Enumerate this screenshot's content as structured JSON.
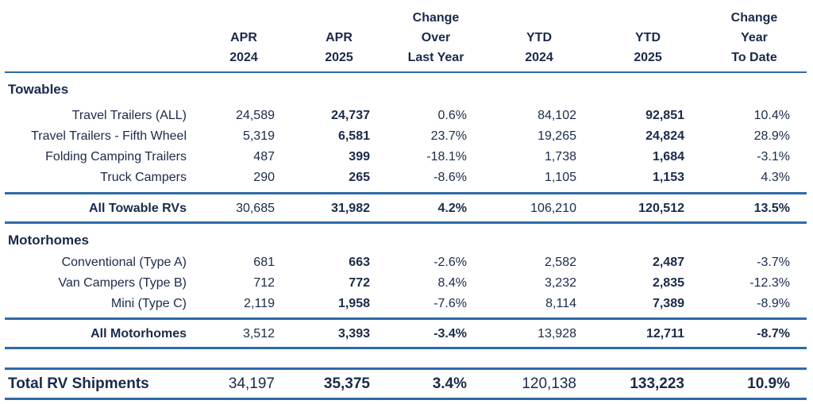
{
  "header": {
    "apr2024": [
      "APR",
      "2024"
    ],
    "apr2025": [
      "APR",
      "2025"
    ],
    "change_over": [
      "Change",
      "Over",
      "Last Year"
    ],
    "ytd2024": [
      "YTD",
      "2024"
    ],
    "ytd2025": [
      "YTD",
      "2025"
    ],
    "change_ytd": [
      "Change",
      "Year",
      "To Date"
    ]
  },
  "towables": {
    "title": "Towables",
    "rows": [
      {
        "label": "Travel Trailers (ALL)",
        "apr2024": "24,589",
        "apr2025": "24,737",
        "chg": "0.6%",
        "ytd2024": "84,102",
        "ytd2025": "92,851",
        "ytdchg": "10.4%"
      },
      {
        "label": "Travel Trailers - Fifth Wheel",
        "apr2024": "5,319",
        "apr2025": "6,581",
        "chg": "23.7%",
        "ytd2024": "19,265",
        "ytd2025": "24,824",
        "ytdchg": "28.9%"
      },
      {
        "label": "Folding Camping Trailers",
        "apr2024": "487",
        "apr2025": "399",
        "chg": "-18.1%",
        "ytd2024": "1,738",
        "ytd2025": "1,684",
        "ytdchg": "-3.1%"
      },
      {
        "label": "Truck Campers",
        "apr2024": "290",
        "apr2025": "265",
        "chg": "-8.6%",
        "ytd2024": "1,105",
        "ytd2025": "1,153",
        "ytdchg": "4.3%"
      }
    ],
    "total": {
      "label": "All Towable RVs",
      "apr2024": "30,685",
      "apr2025": "31,982",
      "chg": "4.2%",
      "ytd2024": "106,210",
      "ytd2025": "120,512",
      "ytdchg": "13.5%"
    }
  },
  "motorhomes": {
    "title": "Motorhomes",
    "rows": [
      {
        "label": "Conventional (Type A)",
        "apr2024": "681",
        "apr2025": "663",
        "chg": "-2.6%",
        "ytd2024": "2,582",
        "ytd2025": "2,487",
        "ytdchg": "-3.7%"
      },
      {
        "label": "Van Campers (Type B)",
        "apr2024": "712",
        "apr2025": "772",
        "chg": "8.4%",
        "ytd2024": "3,232",
        "ytd2025": "2,835",
        "ytdchg": "-12.3%"
      },
      {
        "label": "Mini (Type C)",
        "apr2024": "2,119",
        "apr2025": "1,958",
        "chg": "-7.6%",
        "ytd2024": "8,114",
        "ytd2025": "7,389",
        "ytdchg": "-8.9%"
      }
    ],
    "total": {
      "label": "All Motorhomes",
      "apr2024": "3,512",
      "apr2025": "3,393",
      "chg": "-3.4%",
      "ytd2024": "13,928",
      "ytd2025": "12,711",
      "ytdchg": "-8.7%"
    }
  },
  "grand_total": {
    "label": "Total RV Shipments",
    "apr2024": "34,197",
    "apr2025": "35,375",
    "chg": "3.4%",
    "ytd2024": "120,138",
    "ytd2025": "133,223",
    "ytdchg": "10.9%"
  }
}
